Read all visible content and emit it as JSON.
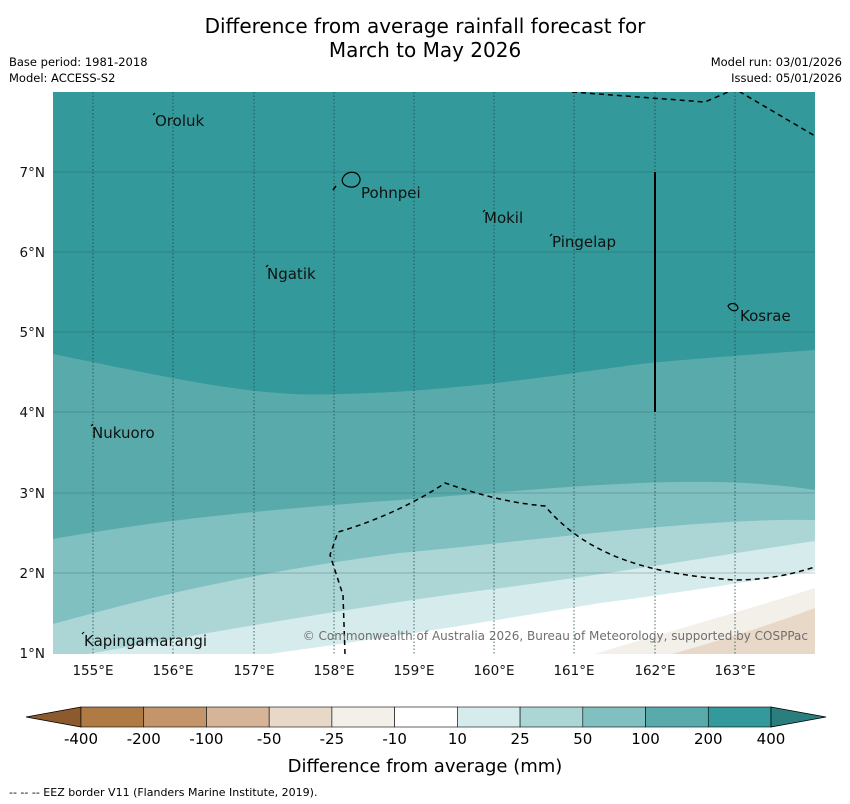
{
  "title_line1": "Difference from average rainfall forecast for",
  "title_line2": "March to May 2026",
  "base_period": "Base period: 1981-2018",
  "model": "Model: ACCESS-S2",
  "model_run": "Model run: 03/01/2026",
  "issued": "Issued: 05/01/2026",
  "lat_labels": [
    "7°N",
    "6°N",
    "5°N",
    "4°N",
    "3°N",
    "2°N",
    "1°N"
  ],
  "lon_labels": [
    "155°E",
    "156°E",
    "157°E",
    "158°E",
    "159°E",
    "160°E",
    "161°E",
    "162°E",
    "163°E"
  ],
  "places": {
    "oroluk": "Oroluk",
    "pohnpei": "Pohnpei",
    "mokil": "Mokil",
    "pingelap": "Pingelap",
    "ngatik": "Ngatik",
    "kosrae": "Kosrae",
    "nukuoro": "Nukuoro",
    "kapingamarangi": "Kapingamarangi"
  },
  "copyright": "© Commonwealth of Australia 2026, Bureau of Meteorology, supported by COSPPac",
  "colorbar": {
    "colors": [
      "#8c5a2d",
      "#b07a45",
      "#c4956a",
      "#d6b497",
      "#e8d8c8",
      "#f3efe9",
      "#ffffff",
      "#d6ebeb",
      "#acd6d6",
      "#80c0c0",
      "#59abab",
      "#33999a",
      "#2a7f7e"
    ],
    "labels": [
      "-400",
      "-200",
      "-100",
      "-50",
      "-25",
      "-10",
      "10",
      "25",
      "50",
      "100",
      "200",
      "400"
    ],
    "axis_label": "Difference from average (mm)"
  },
  "footnote": "--  --  -- EEZ border V11 (Flanders Marine Institute, 2019)."
}
